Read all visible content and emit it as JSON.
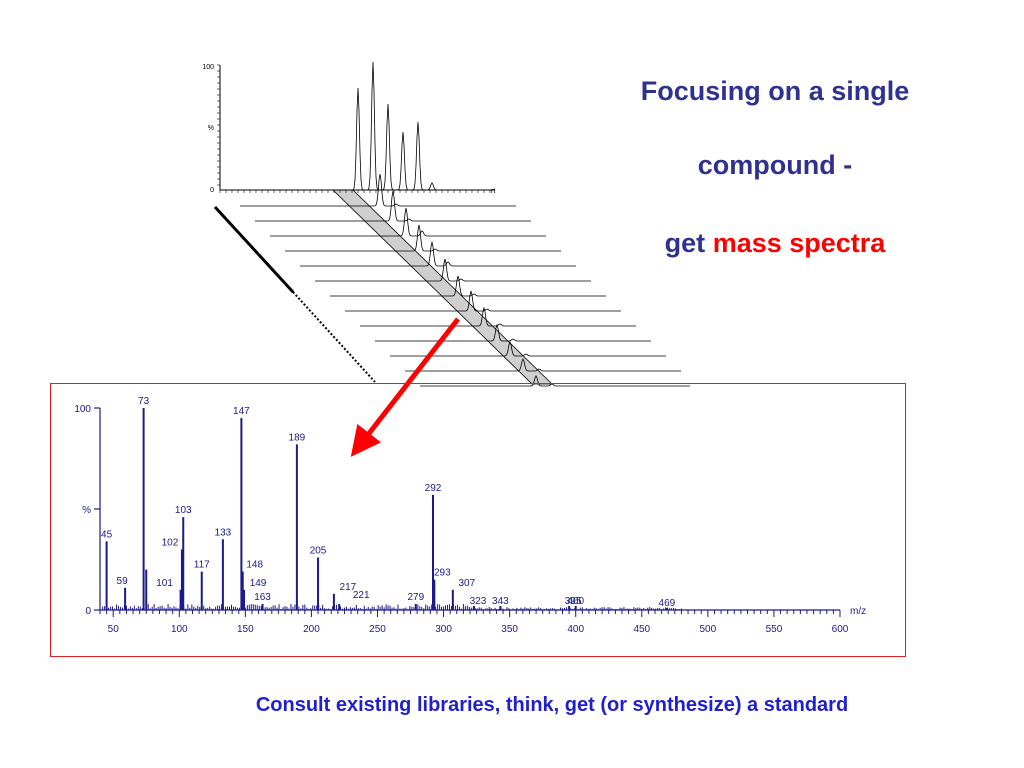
{
  "slide": {
    "title_line1": "Focusing on a single",
    "title_line2": "compound -",
    "title_line3_prefix": "get ",
    "title_line3_highlight": "mass spectra",
    "caption": "Consult existing libraries, think, get (or synthesize) a standard",
    "colors": {
      "title": "#2e3192",
      "highlight": "#ff0000",
      "caption": "#1f1fd0",
      "spectrum": "#1a1a8c",
      "frame": "#e02020",
      "arrow": "#ff0000"
    }
  },
  "chromatogram": {
    "y_top_label": "100",
    "y_mid_label": "%",
    "y_zero_label": "0",
    "x_label": "rt"
  },
  "chart_data": {
    "type": "bar",
    "xlabel": "m/z",
    "ylabel": "%",
    "xlim": [
      40,
      600
    ],
    "ylim": [
      0,
      100
    ],
    "x_ticks": [
      "50",
      "100",
      "150",
      "200",
      "250",
      "300",
      "350",
      "400",
      "450",
      "500",
      "550",
      "600"
    ],
    "y_ticks": [
      "0",
      "%",
      "100"
    ],
    "peaks": [
      {
        "mz": 45,
        "intensity": 34,
        "label": "45"
      },
      {
        "mz": 59,
        "intensity": 11,
        "label": "59"
      },
      {
        "mz": 73,
        "intensity": 100,
        "label": "73"
      },
      {
        "mz": 75,
        "intensity": 20,
        "label": ""
      },
      {
        "mz": 101,
        "intensity": 10,
        "label": "101"
      },
      {
        "mz": 102,
        "intensity": 30,
        "label": "102"
      },
      {
        "mz": 103,
        "intensity": 46,
        "label": "103"
      },
      {
        "mz": 117,
        "intensity": 19,
        "label": "117"
      },
      {
        "mz": 133,
        "intensity": 35,
        "label": "133"
      },
      {
        "mz": 147,
        "intensity": 95,
        "label": "147"
      },
      {
        "mz": 148,
        "intensity": 19,
        "label": "148"
      },
      {
        "mz": 149,
        "intensity": 10,
        "label": "149"
      },
      {
        "mz": 163,
        "intensity": 3,
        "label": "163"
      },
      {
        "mz": 189,
        "intensity": 82,
        "label": "189"
      },
      {
        "mz": 205,
        "intensity": 26,
        "label": "205"
      },
      {
        "mz": 217,
        "intensity": 8,
        "label": "217"
      },
      {
        "mz": 221,
        "intensity": 3,
        "label": "221"
      },
      {
        "mz": 279,
        "intensity": 3,
        "label": "279"
      },
      {
        "mz": 292,
        "intensity": 57,
        "label": "292"
      },
      {
        "mz": 293,
        "intensity": 15,
        "label": "293"
      },
      {
        "mz": 307,
        "intensity": 10,
        "label": "307"
      },
      {
        "mz": 323,
        "intensity": 2,
        "label": "323"
      },
      {
        "mz": 343,
        "intensity": 2,
        "label": "343"
      },
      {
        "mz": 395,
        "intensity": 2,
        "label": "395"
      },
      {
        "mz": 400,
        "intensity": 2,
        "label": "400"
      },
      {
        "mz": 469,
        "intensity": 1,
        "label": "469"
      }
    ]
  }
}
